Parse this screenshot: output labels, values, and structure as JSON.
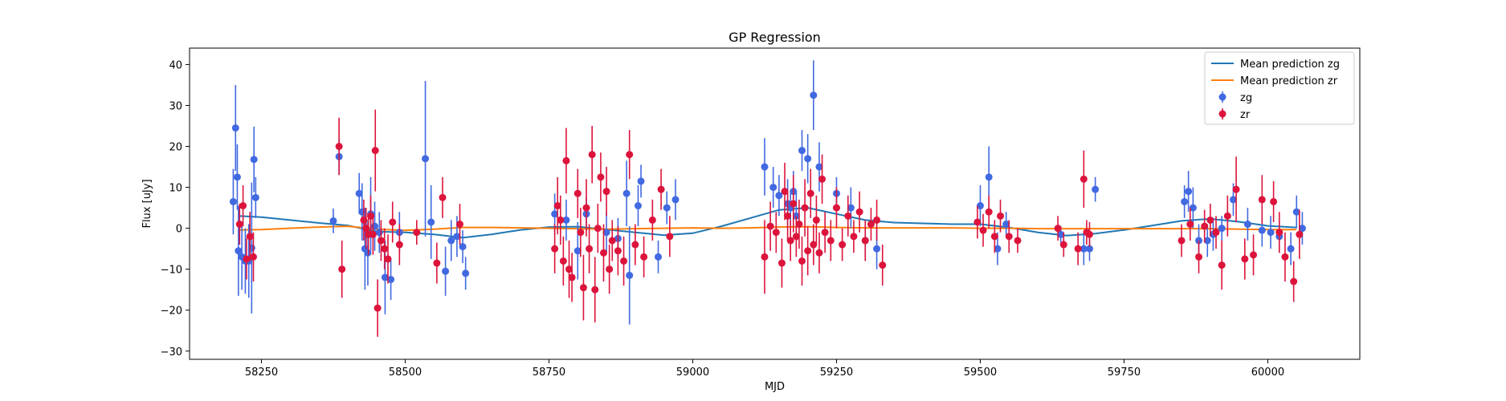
{
  "chart_data": {
    "type": "scatter",
    "title": "GP Regression",
    "xlabel": "MJD",
    "ylabel": "Flux [uJy]",
    "xlim": [
      58125,
      60160
    ],
    "ylim": [
      -32,
      44
    ],
    "xticks": [
      58250,
      58500,
      58750,
      59000,
      59250,
      59500,
      59750,
      60000
    ],
    "yticks": [
      -30,
      -20,
      -10,
      0,
      10,
      20,
      30,
      40
    ],
    "grid": false,
    "legend_position": "top-right",
    "colors": {
      "zg_line": "#1f77b4",
      "zr_line": "#ff7f0e",
      "zg_points": "#4169e1",
      "zr_points": "#dc143c"
    },
    "lines": [
      {
        "name": "Mean prediction zg",
        "x": [
          58210,
          58250,
          58300,
          58350,
          58400,
          58450,
          58500,
          58550,
          58600,
          58650,
          58700,
          58750,
          58800,
          58850,
          58900,
          58950,
          59000,
          59050,
          59100,
          59150,
          59200,
          59250,
          59300,
          59350,
          59400,
          59450,
          59500,
          59550,
          59600,
          59650,
          59700,
          59750,
          59800,
          59850,
          59900,
          59950,
          60000,
          60050
        ],
        "y": [
          3.0,
          2.7,
          2.0,
          1.3,
          0.7,
          -0.8,
          -1.0,
          -1.5,
          -2.3,
          -1.5,
          -0.4,
          0.3,
          0.4,
          -0.3,
          -1.0,
          -1.7,
          -1.2,
          0.5,
          2.5,
          4.5,
          5.0,
          3.5,
          2.0,
          1.4,
          1.2,
          1.0,
          1.0,
          0.2,
          -1.0,
          -1.8,
          -1.3,
          -0.4,
          0.7,
          1.8,
          2.3,
          1.6,
          0.6,
          0.2
        ]
      },
      {
        "name": "Mean prediction zr",
        "x": [
          58210,
          58250,
          58300,
          58350,
          58400,
          58450,
          58500,
          58550,
          58600,
          58650,
          58700,
          58750,
          58800,
          58850,
          58900,
          58950,
          59000,
          59050,
          59100,
          59150,
          59200,
          59250,
          59300,
          59350,
          59400,
          59450,
          59500,
          59550,
          59600,
          59650,
          59700,
          59750,
          59800,
          59850,
          59900,
          59950,
          60000,
          60050
        ],
        "y": [
          -0.4,
          -0.3,
          0.0,
          0.3,
          0.5,
          -0.2,
          -0.5,
          -0.2,
          0.2,
          0.2,
          0.1,
          0.0,
          -0.1,
          -0.2,
          -0.1,
          0.0,
          0.1,
          0.0,
          0.1,
          0.3,
          0.4,
          0.2,
          0.1,
          0.1,
          0.1,
          0.1,
          0.0,
          0.0,
          -0.1,
          -0.1,
          -0.1,
          -0.1,
          -0.1,
          -0.1,
          -0.1,
          -0.2,
          -0.3,
          -0.3
        ]
      }
    ],
    "series": [
      {
        "name": "zg",
        "x": [
          58201,
          58205,
          58208,
          58210,
          58216,
          58222,
          58228,
          58233,
          58237,
          58240,
          58375,
          58385,
          58420,
          58425,
          58430,
          58435,
          58440,
          58447,
          58455,
          58465,
          58475,
          58490,
          58535,
          58545,
          58570,
          58580,
          58590,
          58600,
          58605,
          58760,
          58780,
          58800,
          58815,
          58850,
          58870,
          58885,
          58890,
          58905,
          58910,
          58940,
          58955,
          58970,
          59125,
          59140,
          59150,
          59165,
          59170,
          59175,
          59180,
          59190,
          59200,
          59210,
          59220,
          59250,
          59275,
          59300,
          59320,
          59500,
          59515,
          59530,
          59545,
          59640,
          59680,
          59690,
          59700,
          59855,
          59862,
          59870,
          59880,
          59895,
          59905,
          59920,
          59940,
          59965,
          59990,
          60005,
          60020,
          60040,
          60050,
          60060
        ],
        "y": [
          6.5,
          24.5,
          12.5,
          -5.5,
          -7.0,
          -8.0,
          -8.0,
          -4.8,
          16.8,
          7.5,
          1.8,
          17.5,
          8.5,
          4.0,
          -5.0,
          -6.0,
          3.5,
          0.5,
          -1.0,
          -12.0,
          -12.5,
          -1.0,
          17.0,
          1.5,
          -10.5,
          -3.0,
          -2.0,
          -4.5,
          -11.0,
          3.5,
          2.0,
          -5.5,
          3.5,
          -1.0,
          -2.5,
          8.5,
          -11.5,
          5.5,
          11.5,
          -7.0,
          5.0,
          7.0,
          15.0,
          10.0,
          8.0,
          6.0,
          5.0,
          9.0,
          3.0,
          19.0,
          17.0,
          32.5,
          15.0,
          8.5,
          5.0,
          -3.0,
          -5.0,
          5.5,
          12.5,
          -5.0,
          1.0,
          -1.5,
          -5.0,
          -5.0,
          9.5,
          6.5,
          9.0,
          5.0,
          -3.0,
          -3.0,
          -1.5,
          0.0,
          7.0,
          1.0,
          -0.5,
          -1.0,
          -2.0,
          -5.0,
          4.0,
          0.0
        ],
        "yerr": [
          8,
          10.5,
          8,
          11,
          8,
          8,
          9,
          16,
          8,
          5,
          3,
          4.5,
          5,
          7,
          10,
          8,
          9,
          6,
          5,
          9,
          5,
          5,
          19,
          9,
          6,
          5,
          5,
          4,
          4,
          5,
          5,
          7,
          4,
          5,
          5,
          8,
          12,
          5,
          4,
          4,
          4,
          5,
          7,
          5,
          5,
          6,
          4,
          5,
          6,
          5,
          6,
          8.5,
          6,
          4,
          5,
          5,
          5,
          5,
          7.5,
          4,
          3,
          2,
          4,
          3,
          3,
          4,
          5,
          5,
          4,
          4,
          4,
          3,
          4,
          4,
          4,
          4,
          4,
          4,
          4,
          4
        ]
      },
      {
        "name": "zr",
        "x": [
          58212,
          58218,
          58224,
          58230,
          58236,
          58385,
          58390,
          58428,
          58432,
          58436,
          58440,
          58444,
          58448,
          58452,
          58458,
          58464,
          58470,
          58478,
          58490,
          58520,
          58555,
          58565,
          58595,
          58760,
          58765,
          58770,
          58775,
          58780,
          58785,
          58790,
          58800,
          58805,
          58810,
          58815,
          58820,
          58825,
          58830,
          58835,
          58840,
          58845,
          58850,
          58855,
          58860,
          58870,
          58880,
          58890,
          58900,
          58915,
          58930,
          58945,
          58960,
          59125,
          59135,
          59145,
          59155,
          59160,
          59165,
          59170,
          59175,
          59180,
          59185,
          59190,
          59195,
          59200,
          59205,
          59210,
          59215,
          59220,
          59225,
          59230,
          59240,
          59250,
          59260,
          59270,
          59280,
          59290,
          59300,
          59310,
          59320,
          59330,
          59495,
          59505,
          59515,
          59525,
          59535,
          59550,
          59565,
          59635,
          59645,
          59670,
          59680,
          59685,
          59690,
          59850,
          59865,
          59880,
          59890,
          59900,
          59910,
          59920,
          59930,
          59945,
          59960,
          59975,
          59990,
          60010,
          60020,
          60030,
          60045,
          60055
        ],
        "y": [
          1.0,
          5.5,
          -7.5,
          -2.0,
          -7.0,
          20.0,
          -10.0,
          2.0,
          0.0,
          -1.5,
          3.0,
          -1.5,
          19.0,
          -19.5,
          -3.0,
          -5.0,
          -7.5,
          1.5,
          -4.0,
          -1.0,
          -8.5,
          7.5,
          1.0,
          -5.0,
          5.5,
          2.0,
          -8.0,
          16.5,
          -10.0,
          -12.0,
          8.5,
          -1.0,
          -14.5,
          5.0,
          -5.0,
          18.0,
          -15.0,
          0.0,
          12.5,
          -6.0,
          9.0,
          -10.0,
          -3.0,
          -5.5,
          -8.0,
          18.0,
          -4.0,
          -7.0,
          2.0,
          9.5,
          -2.0,
          -7.0,
          0.5,
          -1.0,
          -8.5,
          9.0,
          3.0,
          -3.0,
          6.0,
          -2.0,
          1.0,
          -8.0,
          5.0,
          -5.5,
          8.5,
          -4.0,
          2.0,
          -6.0,
          12.0,
          -1.0,
          -3.0,
          5.0,
          -4.0,
          3.0,
          -2.0,
          4.0,
          -3.0,
          1.0,
          2.0,
          -9.0,
          1.5,
          -0.5,
          4.0,
          -2.0,
          3.0,
          -2.0,
          -3.0,
          0.0,
          -4.0,
          -5.0,
          12.0,
          -1.0,
          -1.5,
          -3.0,
          1.0,
          -7.0,
          0.5,
          2.0,
          -1.0,
          -9.0,
          3.0,
          9.5,
          -7.5,
          -6.5,
          7.0,
          6.5,
          -1.0,
          -7.0,
          -13.0,
          -1.5
        ],
        "yerr": [
          5,
          5,
          5,
          6,
          6,
          7,
          7,
          5,
          5,
          5,
          5,
          5,
          10,
          7,
          5,
          5,
          6,
          5,
          5,
          3,
          5,
          5,
          5,
          6,
          7,
          6,
          6,
          8,
          7,
          6,
          6,
          6,
          8,
          7,
          6,
          7,
          8,
          6,
          6,
          7,
          6,
          6,
          5,
          6,
          6,
          6,
          5,
          5,
          5,
          5,
          5,
          9,
          6,
          5,
          6,
          7,
          6,
          5,
          7,
          5,
          6,
          6,
          7,
          6,
          6,
          5,
          6,
          5,
          6,
          5,
          5,
          5,
          4,
          5,
          4,
          5,
          5,
          4,
          5,
          5,
          4,
          4,
          4,
          4,
          4,
          4,
          3,
          3,
          3,
          4,
          7,
          3,
          3,
          4,
          4,
          4,
          4,
          4,
          4,
          6,
          5,
          8,
          5,
          5,
          6,
          5,
          5,
          6,
          5,
          6
        ]
      }
    ]
  }
}
